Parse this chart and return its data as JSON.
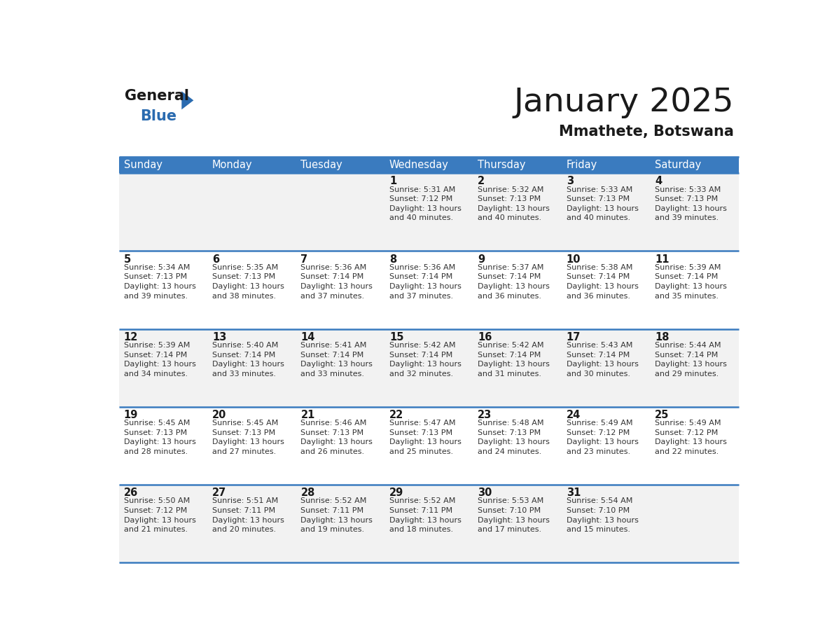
{
  "title": "January 2025",
  "subtitle": "Mmathete, Botswana",
  "header_bg_color": "#3a7bbf",
  "header_text_color": "#ffffff",
  "row_bg_colors": [
    "#f2f2f2",
    "#ffffff",
    "#f2f2f2",
    "#ffffff",
    "#f2f2f2"
  ],
  "border_color": "#3a7bbf",
  "title_color": "#1a1a1a",
  "subtitle_color": "#1a1a1a",
  "day_number_color": "#1a1a1a",
  "cell_text_color": "#333333",
  "weekdays": [
    "Sunday",
    "Monday",
    "Tuesday",
    "Wednesday",
    "Thursday",
    "Friday",
    "Saturday"
  ],
  "weeks": [
    [
      {
        "day": 0,
        "text": ""
      },
      {
        "day": 0,
        "text": ""
      },
      {
        "day": 0,
        "text": ""
      },
      {
        "day": 1,
        "text": "Sunrise: 5:31 AM\nSunset: 7:12 PM\nDaylight: 13 hours\nand 40 minutes."
      },
      {
        "day": 2,
        "text": "Sunrise: 5:32 AM\nSunset: 7:13 PM\nDaylight: 13 hours\nand 40 minutes."
      },
      {
        "day": 3,
        "text": "Sunrise: 5:33 AM\nSunset: 7:13 PM\nDaylight: 13 hours\nand 40 minutes."
      },
      {
        "day": 4,
        "text": "Sunrise: 5:33 AM\nSunset: 7:13 PM\nDaylight: 13 hours\nand 39 minutes."
      }
    ],
    [
      {
        "day": 5,
        "text": "Sunrise: 5:34 AM\nSunset: 7:13 PM\nDaylight: 13 hours\nand 39 minutes."
      },
      {
        "day": 6,
        "text": "Sunrise: 5:35 AM\nSunset: 7:13 PM\nDaylight: 13 hours\nand 38 minutes."
      },
      {
        "day": 7,
        "text": "Sunrise: 5:36 AM\nSunset: 7:14 PM\nDaylight: 13 hours\nand 37 minutes."
      },
      {
        "day": 8,
        "text": "Sunrise: 5:36 AM\nSunset: 7:14 PM\nDaylight: 13 hours\nand 37 minutes."
      },
      {
        "day": 9,
        "text": "Sunrise: 5:37 AM\nSunset: 7:14 PM\nDaylight: 13 hours\nand 36 minutes."
      },
      {
        "day": 10,
        "text": "Sunrise: 5:38 AM\nSunset: 7:14 PM\nDaylight: 13 hours\nand 36 minutes."
      },
      {
        "day": 11,
        "text": "Sunrise: 5:39 AM\nSunset: 7:14 PM\nDaylight: 13 hours\nand 35 minutes."
      }
    ],
    [
      {
        "day": 12,
        "text": "Sunrise: 5:39 AM\nSunset: 7:14 PM\nDaylight: 13 hours\nand 34 minutes."
      },
      {
        "day": 13,
        "text": "Sunrise: 5:40 AM\nSunset: 7:14 PM\nDaylight: 13 hours\nand 33 minutes."
      },
      {
        "day": 14,
        "text": "Sunrise: 5:41 AM\nSunset: 7:14 PM\nDaylight: 13 hours\nand 33 minutes."
      },
      {
        "day": 15,
        "text": "Sunrise: 5:42 AM\nSunset: 7:14 PM\nDaylight: 13 hours\nand 32 minutes."
      },
      {
        "day": 16,
        "text": "Sunrise: 5:42 AM\nSunset: 7:14 PM\nDaylight: 13 hours\nand 31 minutes."
      },
      {
        "day": 17,
        "text": "Sunrise: 5:43 AM\nSunset: 7:14 PM\nDaylight: 13 hours\nand 30 minutes."
      },
      {
        "day": 18,
        "text": "Sunrise: 5:44 AM\nSunset: 7:14 PM\nDaylight: 13 hours\nand 29 minutes."
      }
    ],
    [
      {
        "day": 19,
        "text": "Sunrise: 5:45 AM\nSunset: 7:13 PM\nDaylight: 13 hours\nand 28 minutes."
      },
      {
        "day": 20,
        "text": "Sunrise: 5:45 AM\nSunset: 7:13 PM\nDaylight: 13 hours\nand 27 minutes."
      },
      {
        "day": 21,
        "text": "Sunrise: 5:46 AM\nSunset: 7:13 PM\nDaylight: 13 hours\nand 26 minutes."
      },
      {
        "day": 22,
        "text": "Sunrise: 5:47 AM\nSunset: 7:13 PM\nDaylight: 13 hours\nand 25 minutes."
      },
      {
        "day": 23,
        "text": "Sunrise: 5:48 AM\nSunset: 7:13 PM\nDaylight: 13 hours\nand 24 minutes."
      },
      {
        "day": 24,
        "text": "Sunrise: 5:49 AM\nSunset: 7:12 PM\nDaylight: 13 hours\nand 23 minutes."
      },
      {
        "day": 25,
        "text": "Sunrise: 5:49 AM\nSunset: 7:12 PM\nDaylight: 13 hours\nand 22 minutes."
      }
    ],
    [
      {
        "day": 26,
        "text": "Sunrise: 5:50 AM\nSunset: 7:12 PM\nDaylight: 13 hours\nand 21 minutes."
      },
      {
        "day": 27,
        "text": "Sunrise: 5:51 AM\nSunset: 7:11 PM\nDaylight: 13 hours\nand 20 minutes."
      },
      {
        "day": 28,
        "text": "Sunrise: 5:52 AM\nSunset: 7:11 PM\nDaylight: 13 hours\nand 19 minutes."
      },
      {
        "day": 29,
        "text": "Sunrise: 5:52 AM\nSunset: 7:11 PM\nDaylight: 13 hours\nand 18 minutes."
      },
      {
        "day": 30,
        "text": "Sunrise: 5:53 AM\nSunset: 7:10 PM\nDaylight: 13 hours\nand 17 minutes."
      },
      {
        "day": 31,
        "text": "Sunrise: 5:54 AM\nSunset: 7:10 PM\nDaylight: 13 hours\nand 15 minutes."
      },
      {
        "day": 0,
        "text": ""
      }
    ]
  ]
}
